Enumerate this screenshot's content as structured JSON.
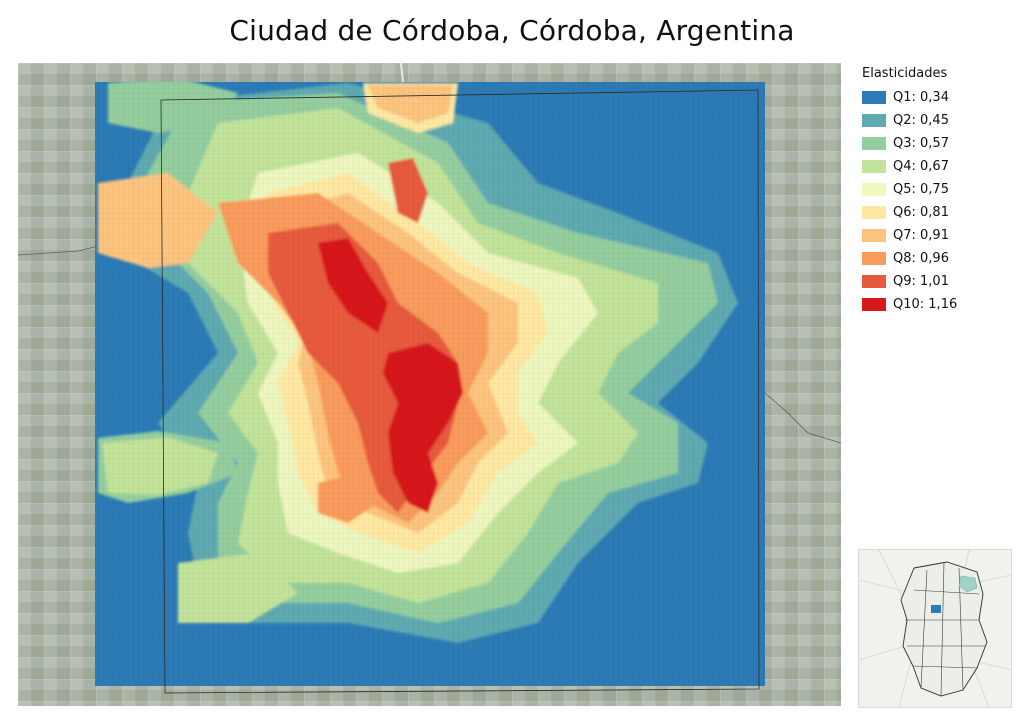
{
  "title": "Ciudad de Córdoba, Córdoba, Argentina",
  "legend": {
    "title": "Elasticidades",
    "items": [
      {
        "label": "Q1: 0,34",
        "color": "#2c7bb6"
      },
      {
        "label": "Q2: 0,45",
        "color": "#5eaab1"
      },
      {
        "label": "Q3: 0,57",
        "color": "#94ce9f"
      },
      {
        "label": "Q4: 0,67",
        "color": "#c2e39a"
      },
      {
        "label": "Q5: 0,75",
        "color": "#eef7bf"
      },
      {
        "label": "Q6: 0,81",
        "color": "#fee8a2"
      },
      {
        "label": "Q7: 0,91",
        "color": "#fdc47f"
      },
      {
        "label": "Q8: 0,96",
        "color": "#f99b5c"
      },
      {
        "label": "Q9: 1,01",
        "color": "#e75a3d"
      },
      {
        "label": "Q10: 1,16",
        "color": "#d7191c"
      }
    ]
  },
  "colors": {
    "basemap": "#a9b2a6",
    "boundary": "#2b2b2b",
    "inset_highlight": "#2c7bb6",
    "inset_water": "#9fd3c7"
  }
}
